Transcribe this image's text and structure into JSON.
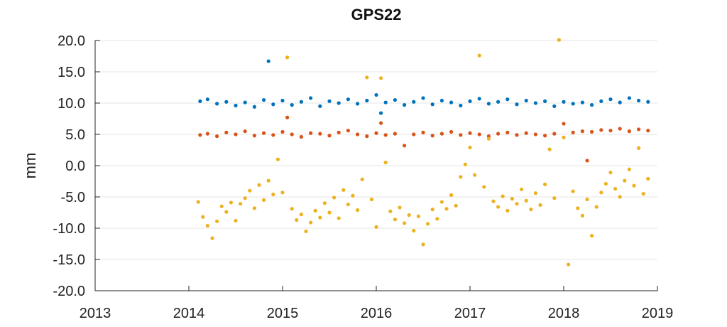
{
  "chart_data": {
    "type": "scatter",
    "title": "GPS22",
    "xlabel": "",
    "ylabel": "mm",
    "xlim": [
      2013,
      2019
    ],
    "ylim": [
      -20,
      20
    ],
    "x_ticks": [
      2013,
      2014,
      2015,
      2016,
      2017,
      2018,
      2019
    ],
    "y_ticks": [
      -20,
      -15,
      -10,
      -5,
      0,
      5,
      10,
      15,
      20
    ],
    "y_tick_labels": [
      "-20.0",
      "-15.0",
      "-10.0",
      "-5.0",
      "0.0",
      "5.0",
      "10.0",
      "15.0",
      "20.0"
    ],
    "x_tick_labels": [
      "2013",
      "2014",
      "2015",
      "2016",
      "2017",
      "2018",
      "2019"
    ],
    "grid": "horizontal",
    "series": [
      {
        "color": "#0072BD",
        "points": [
          [
            2014.12,
            10.3
          ],
          [
            2014.2,
            10.6
          ],
          [
            2014.3,
            9.9
          ],
          [
            2014.4,
            10.2
          ],
          [
            2014.5,
            9.6
          ],
          [
            2014.6,
            10.1
          ],
          [
            2014.7,
            9.4
          ],
          [
            2014.8,
            10.5
          ],
          [
            2014.85,
            16.7
          ],
          [
            2014.9,
            9.8
          ],
          [
            2015.0,
            10.4
          ],
          [
            2015.1,
            9.7
          ],
          [
            2015.2,
            10.2
          ],
          [
            2015.3,
            10.8
          ],
          [
            2015.4,
            9.5
          ],
          [
            2015.5,
            10.3
          ],
          [
            2015.6,
            10.0
          ],
          [
            2015.7,
            10.6
          ],
          [
            2015.8,
            9.9
          ],
          [
            2015.9,
            10.4
          ],
          [
            2016.0,
            11.3
          ],
          [
            2016.05,
            8.4
          ],
          [
            2016.1,
            10.1
          ],
          [
            2016.2,
            10.5
          ],
          [
            2016.3,
            9.7
          ],
          [
            2016.4,
            10.2
          ],
          [
            2016.5,
            10.8
          ],
          [
            2016.6,
            9.8
          ],
          [
            2016.7,
            10.4
          ],
          [
            2016.8,
            10.1
          ],
          [
            2016.9,
            9.6
          ],
          [
            2017.0,
            10.3
          ],
          [
            2017.1,
            10.7
          ],
          [
            2017.2,
            9.9
          ],
          [
            2017.3,
            10.2
          ],
          [
            2017.4,
            10.6
          ],
          [
            2017.5,
            9.8
          ],
          [
            2017.6,
            10.4
          ],
          [
            2017.7,
            10.0
          ],
          [
            2017.8,
            10.3
          ],
          [
            2017.9,
            9.5
          ],
          [
            2018.0,
            10.2
          ],
          [
            2018.1,
            9.9
          ],
          [
            2018.2,
            10.1
          ],
          [
            2018.3,
            9.7
          ],
          [
            2018.4,
            10.3
          ],
          [
            2018.5,
            10.6
          ],
          [
            2018.6,
            10.1
          ],
          [
            2018.7,
            10.8
          ],
          [
            2018.8,
            10.4
          ],
          [
            2018.9,
            10.2
          ]
        ]
      },
      {
        "color": "#D95319",
        "points": [
          [
            2014.12,
            4.9
          ],
          [
            2014.2,
            5.1
          ],
          [
            2014.3,
            4.7
          ],
          [
            2014.4,
            5.3
          ],
          [
            2014.5,
            5.0
          ],
          [
            2014.6,
            5.5
          ],
          [
            2014.7,
            4.8
          ],
          [
            2014.8,
            5.2
          ],
          [
            2014.9,
            4.9
          ],
          [
            2015.0,
            5.4
          ],
          [
            2015.05,
            7.7
          ],
          [
            2015.1,
            5.0
          ],
          [
            2015.2,
            4.6
          ],
          [
            2015.3,
            5.2
          ],
          [
            2015.4,
            5.1
          ],
          [
            2015.5,
            4.8
          ],
          [
            2015.6,
            5.3
          ],
          [
            2015.7,
            5.6
          ],
          [
            2015.8,
            5.0
          ],
          [
            2015.9,
            4.7
          ],
          [
            2016.0,
            5.2
          ],
          [
            2016.05,
            6.8
          ],
          [
            2016.1,
            4.9
          ],
          [
            2016.2,
            5.1
          ],
          [
            2016.3,
            3.2
          ],
          [
            2016.4,
            5.0
          ],
          [
            2016.5,
            5.3
          ],
          [
            2016.6,
            4.8
          ],
          [
            2016.7,
            5.1
          ],
          [
            2016.8,
            5.4
          ],
          [
            2016.9,
            4.9
          ],
          [
            2017.0,
            5.2
          ],
          [
            2017.1,
            5.0
          ],
          [
            2017.2,
            4.7
          ],
          [
            2017.3,
            5.1
          ],
          [
            2017.4,
            5.3
          ],
          [
            2017.5,
            4.9
          ],
          [
            2017.6,
            5.2
          ],
          [
            2017.7,
            5.0
          ],
          [
            2017.8,
            4.8
          ],
          [
            2017.9,
            5.1
          ],
          [
            2018.0,
            6.7
          ],
          [
            2018.1,
            5.3
          ],
          [
            2018.2,
            5.5
          ],
          [
            2018.25,
            0.8
          ],
          [
            2018.3,
            5.4
          ],
          [
            2018.4,
            5.7
          ],
          [
            2018.5,
            5.6
          ],
          [
            2018.6,
            5.9
          ],
          [
            2018.7,
            5.5
          ],
          [
            2018.8,
            5.8
          ],
          [
            2018.9,
            5.6
          ]
        ]
      },
      {
        "color": "#EDB120",
        "points": [
          [
            2014.1,
            -5.8
          ],
          [
            2014.15,
            -8.2
          ],
          [
            2014.2,
            -9.6
          ],
          [
            2014.25,
            -11.6
          ],
          [
            2014.3,
            -8.9
          ],
          [
            2014.35,
            -6.5
          ],
          [
            2014.4,
            -7.4
          ],
          [
            2014.45,
            -5.9
          ],
          [
            2014.5,
            -8.8
          ],
          [
            2014.55,
            -6.1
          ],
          [
            2014.6,
            -5.2
          ],
          [
            2014.65,
            -4.0
          ],
          [
            2014.7,
            -6.8
          ],
          [
            2014.75,
            -3.1
          ],
          [
            2014.8,
            -5.5
          ],
          [
            2014.85,
            -2.4
          ],
          [
            2014.9,
            -4.6
          ],
          [
            2014.95,
            1.0
          ],
          [
            2015.0,
            -4.3
          ],
          [
            2015.05,
            17.3
          ],
          [
            2015.1,
            -6.9
          ],
          [
            2015.15,
            -8.7
          ],
          [
            2015.2,
            -7.8
          ],
          [
            2015.25,
            -10.5
          ],
          [
            2015.3,
            -9.1
          ],
          [
            2015.35,
            -7.2
          ],
          [
            2015.4,
            -8.3
          ],
          [
            2015.45,
            -6.0
          ],
          [
            2015.5,
            -7.5
          ],
          [
            2015.55,
            -5.1
          ],
          [
            2015.6,
            -8.4
          ],
          [
            2015.65,
            -3.9
          ],
          [
            2015.7,
            -6.2
          ],
          [
            2015.75,
            -4.8
          ],
          [
            2015.8,
            -7.1
          ],
          [
            2015.85,
            -2.2
          ],
          [
            2015.9,
            14.1
          ],
          [
            2015.95,
            -5.4
          ],
          [
            2016.0,
            -9.8
          ],
          [
            2016.05,
            14.0
          ],
          [
            2016.1,
            0.5
          ],
          [
            2016.15,
            -7.3
          ],
          [
            2016.2,
            -8.6
          ],
          [
            2016.25,
            -6.7
          ],
          [
            2016.3,
            -9.2
          ],
          [
            2016.35,
            -7.9
          ],
          [
            2016.4,
            -10.4
          ],
          [
            2016.45,
            -8.1
          ],
          [
            2016.5,
            -12.6
          ],
          [
            2016.55,
            -9.3
          ],
          [
            2016.6,
            -7.0
          ],
          [
            2016.65,
            -8.5
          ],
          [
            2016.7,
            -5.8
          ],
          [
            2016.75,
            -6.9
          ],
          [
            2016.8,
            -4.7
          ],
          [
            2016.85,
            -6.4
          ],
          [
            2016.9,
            -1.8
          ],
          [
            2016.95,
            0.2
          ],
          [
            2017.0,
            2.9
          ],
          [
            2017.05,
            -1.5
          ],
          [
            2017.1,
            17.6
          ],
          [
            2017.15,
            -3.4
          ],
          [
            2017.2,
            4.3
          ],
          [
            2017.25,
            -5.7
          ],
          [
            2017.3,
            -6.6
          ],
          [
            2017.35,
            -4.9
          ],
          [
            2017.4,
            -7.2
          ],
          [
            2017.45,
            -5.3
          ],
          [
            2017.5,
            -6.1
          ],
          [
            2017.55,
            -3.8
          ],
          [
            2017.6,
            -5.6
          ],
          [
            2017.65,
            -7.0
          ],
          [
            2017.7,
            -4.4
          ],
          [
            2017.75,
            -6.3
          ],
          [
            2017.8,
            -3.0
          ],
          [
            2017.85,
            2.6
          ],
          [
            2017.9,
            -5.2
          ],
          [
            2017.95,
            20.1
          ],
          [
            2018.0,
            4.5
          ],
          [
            2018.05,
            -15.8
          ],
          [
            2018.1,
            -4.1
          ],
          [
            2018.15,
            -6.8
          ],
          [
            2018.2,
            -8.0
          ],
          [
            2018.25,
            -5.4
          ],
          [
            2018.3,
            -11.2
          ],
          [
            2018.35,
            -6.6
          ],
          [
            2018.4,
            -4.3
          ],
          [
            2018.45,
            -2.9
          ],
          [
            2018.5,
            -1.1
          ],
          [
            2018.55,
            -3.7
          ],
          [
            2018.6,
            -5.0
          ],
          [
            2018.65,
            -2.4
          ],
          [
            2018.7,
            -0.6
          ],
          [
            2018.75,
            -3.2
          ],
          [
            2018.8,
            2.8
          ],
          [
            2018.85,
            -4.5
          ],
          [
            2018.9,
            -2.1
          ]
        ]
      }
    ]
  }
}
